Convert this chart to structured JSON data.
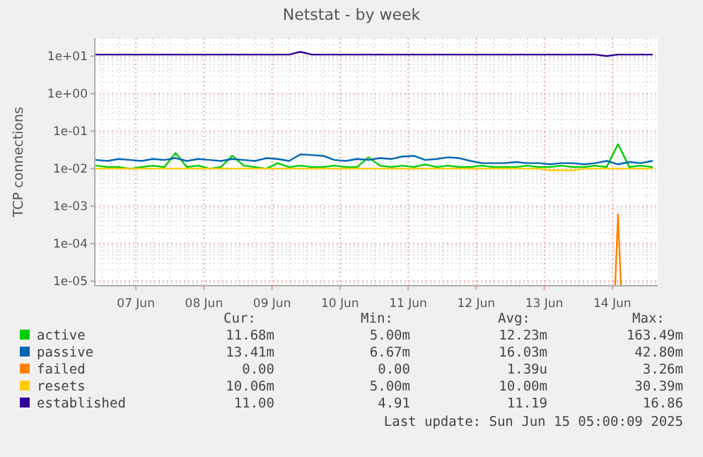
{
  "chart_data": {
    "type": "line",
    "title": "Netstat - by week",
    "ylabel": "TCP connections",
    "x": [
      "2025-06-06T10:00",
      "2025-06-06T14:00",
      "2025-06-06T18:00",
      "2025-06-06T22:00",
      "2025-06-07T02:00",
      "2025-06-07T06:00",
      "2025-06-07T10:00",
      "2025-06-07T14:00",
      "2025-06-07T18:00",
      "2025-06-07T22:00",
      "2025-06-08T02:00",
      "2025-06-08T06:00",
      "2025-06-08T10:00",
      "2025-06-08T14:00",
      "2025-06-08T18:00",
      "2025-06-08T22:00",
      "2025-06-09T02:00",
      "2025-06-09T06:00",
      "2025-06-09T10:00",
      "2025-06-09T14:00",
      "2025-06-09T18:00",
      "2025-06-09T22:00",
      "2025-06-10T02:00",
      "2025-06-10T06:00",
      "2025-06-10T10:00",
      "2025-06-10T14:00",
      "2025-06-10T18:00",
      "2025-06-10T22:00",
      "2025-06-11T02:00",
      "2025-06-11T06:00",
      "2025-06-11T10:00",
      "2025-06-11T14:00",
      "2025-06-11T18:00",
      "2025-06-11T22:00",
      "2025-06-12T02:00",
      "2025-06-12T06:00",
      "2025-06-12T10:00",
      "2025-06-12T14:00",
      "2025-06-12T18:00",
      "2025-06-12T22:00",
      "2025-06-13T02:00",
      "2025-06-13T06:00",
      "2025-06-13T10:00",
      "2025-06-13T14:00",
      "2025-06-13T18:00",
      "2025-06-13T22:00",
      "2025-06-14T02:00",
      "2025-06-14T06:00",
      "2025-06-14T10:00",
      "2025-06-14T14:00"
    ],
    "series": [
      {
        "name": "active",
        "color": "#00cc00",
        "values": [
          0.012,
          0.011,
          0.011,
          0.01,
          0.011,
          0.012,
          0.011,
          0.026,
          0.011,
          0.012,
          0.01,
          0.011,
          0.022,
          0.012,
          0.011,
          0.01,
          0.014,
          0.011,
          0.012,
          0.011,
          0.011,
          0.012,
          0.011,
          0.011,
          0.02,
          0.012,
          0.011,
          0.012,
          0.011,
          0.013,
          0.011,
          0.012,
          0.011,
          0.011,
          0.012,
          0.011,
          0.011,
          0.011,
          0.012,
          0.011,
          0.011,
          0.012,
          0.011,
          0.011,
          0.012,
          0.011,
          0.045,
          0.011,
          0.012,
          0.011
        ]
      },
      {
        "name": "passive",
        "color": "#0066b3",
        "values": [
          0.017,
          0.016,
          0.018,
          0.017,
          0.016,
          0.018,
          0.017,
          0.019,
          0.016,
          0.018,
          0.017,
          0.016,
          0.018,
          0.017,
          0.016,
          0.019,
          0.018,
          0.016,
          0.024,
          0.023,
          0.022,
          0.017,
          0.016,
          0.018,
          0.017,
          0.019,
          0.018,
          0.021,
          0.022,
          0.017,
          0.018,
          0.02,
          0.019,
          0.016,
          0.014,
          0.014,
          0.014,
          0.015,
          0.014,
          0.014,
          0.013,
          0.014,
          0.014,
          0.013,
          0.014,
          0.016,
          0.013,
          0.015,
          0.014,
          0.016
        ]
      },
      {
        "name": "failed",
        "color": "#ff8000",
        "x": [
          "2025-06-14T01:00",
          "2025-06-14T02:00",
          "2025-06-14T03:00"
        ],
        "values": [
          8e-06,
          0.0006,
          8e-06
        ]
      },
      {
        "name": "resets",
        "color": "#ffcc00",
        "values": [
          0.01,
          0.01,
          0.01,
          0.01,
          0.01,
          0.01,
          0.01,
          0.01,
          0.01,
          0.01,
          0.01,
          0.01,
          0.01,
          0.01,
          0.01,
          0.01,
          0.01,
          0.01,
          0.01,
          0.01,
          0.01,
          0.01,
          0.01,
          0.01,
          0.01,
          0.01,
          0.01,
          0.01,
          0.01,
          0.01,
          0.01,
          0.01,
          0.01,
          0.01,
          0.01,
          0.01,
          0.01,
          0.01,
          0.01,
          0.01,
          0.009,
          0.009,
          0.009,
          0.01,
          0.01,
          0.01,
          0.01,
          0.01,
          0.01,
          0.01
        ]
      },
      {
        "name": "established",
        "color": "#330099",
        "values": [
          11,
          11,
          11,
          11,
          11,
          11,
          11,
          11,
          11,
          11,
          11,
          11,
          11,
          11,
          11,
          11,
          11,
          11,
          13,
          11,
          11,
          11,
          11,
          11,
          11,
          11,
          11,
          11,
          11,
          11,
          11,
          11,
          11,
          11,
          11,
          11,
          11,
          11,
          11,
          11,
          11,
          11,
          11,
          11,
          11,
          10,
          11,
          11,
          11,
          11
        ]
      }
    ],
    "log": true,
    "ylim": [
      7.5e-06,
      30
    ],
    "yticks": [
      {
        "value": 1e-05,
        "label": "1e-05"
      },
      {
        "value": 0.0001,
        "label": "1e-04"
      },
      {
        "value": 0.001,
        "label": "1e-03"
      },
      {
        "value": 0.01,
        "label": "1e-02"
      },
      {
        "value": 0.1,
        "label": "1e-01"
      },
      {
        "value": 1,
        "label": "1e+00"
      },
      {
        "value": 10,
        "label": "1e+01"
      }
    ],
    "xlim": [
      "2025-06-06T09:30",
      "2025-06-14T16:00"
    ],
    "xticks": [
      {
        "value": "2025-06-07",
        "label": "07 Jun"
      },
      {
        "value": "2025-06-08",
        "label": "08 Jun"
      },
      {
        "value": "2025-06-09",
        "label": "09 Jun"
      },
      {
        "value": "2025-06-10",
        "label": "10 Jun"
      },
      {
        "value": "2025-06-11",
        "label": "11 Jun"
      },
      {
        "value": "2025-06-12",
        "label": "12 Jun"
      },
      {
        "value": "2025-06-13",
        "label": "13 Jun"
      },
      {
        "value": "2025-06-14",
        "label": "14 Jun"
      }
    ],
    "grid": true,
    "legend": "bottom",
    "annotations": [
      "Cur:",
      "Min:",
      "Avg:",
      "Max:",
      "11.68m",
      "5.00m",
      "12.23m",
      "163.49m",
      "13.41m",
      "6.67m",
      "16.03m",
      "42.80m",
      "0.00",
      "0.00",
      "1.39u",
      "3.26m",
      "10.06m",
      "5.00m",
      "10.00m",
      "30.39m",
      "11.00",
      "4.91",
      "11.19",
      "16.86",
      "Last update: Sun Jun 15 05:00:09 2025"
    ]
  }
}
